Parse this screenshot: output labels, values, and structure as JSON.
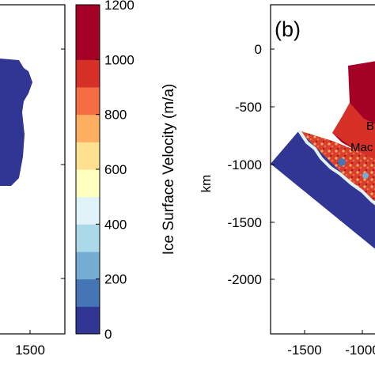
{
  "chart_data": [
    {
      "type": "heatmap",
      "panel": "left",
      "x_ticks": [
        "1500"
      ],
      "y_ticks": [],
      "legend": "none"
    },
    {
      "type": "heatmap",
      "panel_label": "(b)",
      "ylabel": "km",
      "y_ticks": [
        "0",
        "-500",
        "-1000",
        "-1500",
        "-2000"
      ],
      "x_ticks": [
        "-1500",
        "-1000"
      ],
      "annotations": [
        "B",
        "Mac"
      ],
      "legend": "none"
    }
  ],
  "colorbar": {
    "label": "Ice Surface Velocity (m/a)",
    "ticks": [
      "0",
      "200",
      "400",
      "600",
      "800",
      "1000",
      "1200"
    ],
    "min": 0,
    "max": 1200,
    "colors": [
      "#313695",
      "#4575b4",
      "#74add1",
      "#abd9e9",
      "#e0f3f8",
      "#ffffbf",
      "#fee090",
      "#fdae61",
      "#f46d43",
      "#d73027",
      "#a50026",
      "#a50026"
    ]
  }
}
